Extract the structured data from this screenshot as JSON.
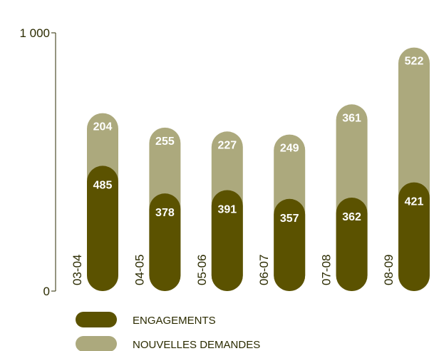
{
  "chart_data": {
    "type": "bar",
    "stacked": true,
    "categories": [
      "03-04",
      "04-05",
      "05-06",
      "06-07",
      "07-08",
      "08-09"
    ],
    "series": [
      {
        "name": "ENGAGEMENTS",
        "values": [
          485,
          378,
          391,
          357,
          362,
          421
        ],
        "color": "#5b5200"
      },
      {
        "name": "NOUVELLES DEMANDES",
        "values": [
          204,
          255,
          227,
          249,
          361,
          522
        ],
        "color": "#aca97d"
      }
    ],
    "ylim": [
      0,
      1000
    ],
    "yticks": [
      {
        "value": 0,
        "label": "0"
      },
      {
        "value": 1000,
        "label": "1 000"
      }
    ],
    "legend_position": "bottom-left",
    "grid": false
  }
}
